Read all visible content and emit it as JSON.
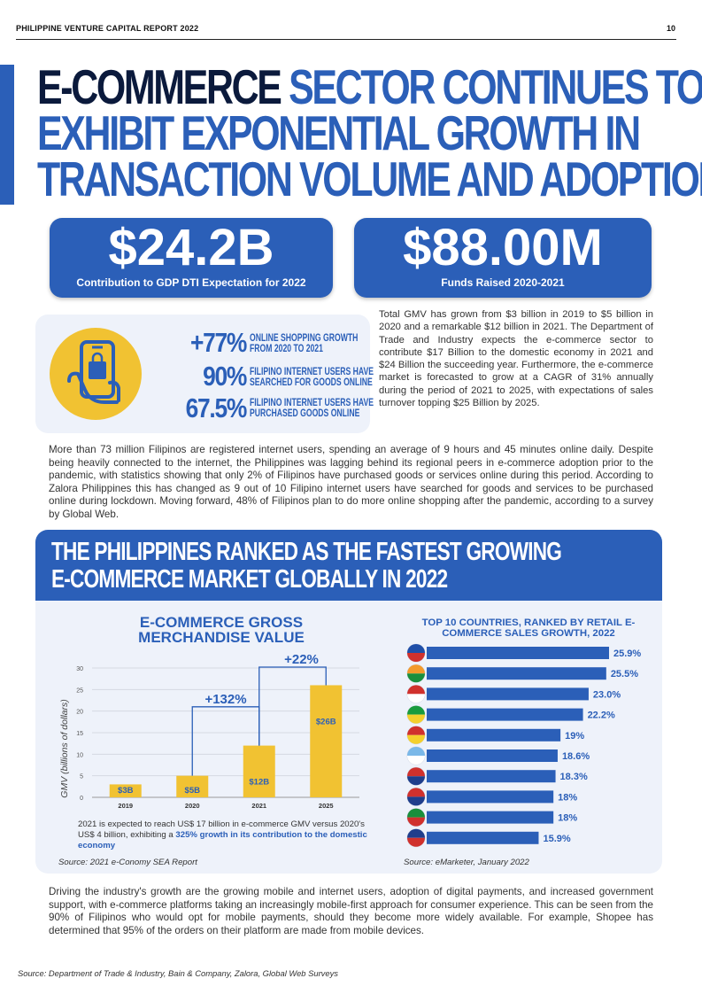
{
  "header": {
    "report_title": "PHILIPPINE VENTURE CAPITAL REPORT 2022",
    "page_number": "10"
  },
  "hero": {
    "line1_dark": "E-COMMERCE",
    "line1_blue": "SECTOR CONTINUES TO",
    "line2": "EXHIBIT EXPONENTIAL GROWTH IN",
    "line3": "TRANSACTION VOLUME AND ADOPTION"
  },
  "stat_boxes": [
    {
      "value": "$24.2B",
      "caption": "Contribution to GDP DTI Expectation for 2022"
    },
    {
      "value": "$88.00M",
      "caption": "Funds Raised 2020-2021"
    }
  ],
  "key_stats": [
    {
      "value": "+77%",
      "label_line1": "ONLINE SHOPPING GROWTH",
      "label_line2": "FROM 2020 TO 2021"
    },
    {
      "value": "90%",
      "label_line1": "FILIPINO INTERNET USERS HAVE",
      "label_line2": "SEARCHED FOR GOODS ONLINE"
    },
    {
      "value": "67.5%",
      "label_line1": "FILIPINO INTERNET USERS HAVE",
      "label_line2": "PURCHASED GOODS ONLINE"
    }
  ],
  "paragraph_gmv": "Total GMV has grown from $3 billion in 2019 to $5 billion in 2020 and a remarkable $12 billion in 2021. The Department of Trade and Industry expects the e-commerce sector to contribute $17 Billion to the domestic economy in 2021 and $24 Billion the succeeding year. Furthermore, the e-commerce market is forecasted to grow at a CAGR of 31% annually during the period of 2021 to 2025, with expectations of sales turnover topping $25 Billion by 2025.",
  "paragraph_users": "More than 73 million Filipinos are registered internet users, spending an average of 9 hours and 45 minutes online daily. Despite being heavily connected to the internet, the Philippines was lagging behind its regional peers in e-commerce adoption prior to the pandemic, with statistics showing that only 2% of Filipinos have purchased goods or services online during this period. According to Zalora Philippines this has changed as 9 out of 10 Filipino internet users have searched for goods and services to be purchased online during lockdown. Moving forward, 48% of Filipinos plan to do more online shopping after the pandemic, according to a survey by Global Web.",
  "section": {
    "title_line1": "THE PHILIPPINES RANKED AS THE FASTEST GROWING",
    "title_line2": "E-COMMERCE MARKET GLOBALLY IN 2022"
  },
  "chart_note_plain": "2021 is expected to reach US$ 17 billion in e-commerce GMV versus 2020's US$ 4 billion, exhibiting a ",
  "chart_note_bold": "325% growth in its contribution to the domestic economy",
  "source_gmv": "Source: 2021 e-Conomy SEA Report",
  "source_growth": "Source: eMarketer, January 2022",
  "paragraph_drivers": "Driving the industry's growth are the growing mobile and internet users, adoption of digital payments, and increased government support, with e-commerce platforms taking an increasingly mobile-first approach for consumer experience. This can be seen from the 90% of Filipinos who would opt for mobile payments, should they become more widely available. For example, Shopee has determined that 95% of the orders on their platform are made from mobile devices.",
  "footer_source": "Source: Department of Trade & Industry, Bain & Company, Zalora, Global Web Surveys",
  "colors": {
    "brand_blue": "#2b5fb8",
    "navy": "#0b1a3c",
    "gold": "#f1c232",
    "panel": "#eef2fa"
  },
  "chart_data": [
    {
      "type": "bar",
      "title": "E-COMMERCE GROSS MERCHANDISE VALUE",
      "categories": [
        "2019",
        "2020",
        "2021",
        "2025"
      ],
      "values": [
        3,
        5,
        12,
        26
      ],
      "value_labels": [
        "$3B",
        "$5B",
        "$12B",
        "$26B"
      ],
      "ylabel": "GMV (billions of dollars)",
      "ylim": [
        0,
        30
      ],
      "yticks": [
        "0",
        "5",
        "10",
        "15",
        "20",
        "25",
        "30"
      ],
      "annotations": [
        {
          "text": "+132%"
        },
        {
          "text": "+22%"
        }
      ]
    },
    {
      "type": "bar",
      "orientation": "horizontal",
      "title": "TOP 10 COUNTRIES, RANKED BY RETAIL E-COMMERCE SALES GROWTH, 2022",
      "categories": [
        "Philippines",
        "India",
        "Indonesia",
        "Brazil",
        "Vietnam",
        "Argentina",
        "Malaysia",
        "Thailand",
        "Mexico",
        "US"
      ],
      "values": [
        25.9,
        25.5,
        23.0,
        22.2,
        19,
        18.6,
        18.3,
        18,
        18,
        15.9
      ],
      "value_labels": [
        "25.9%",
        "25.5%",
        "23.0%",
        "22.2%",
        "19%",
        "18.6%",
        "18.3%",
        "18%",
        "18%",
        "15.9%"
      ],
      "legend_icons": [
        "philippines-flag-icon",
        "india-flag-icon",
        "indonesia-flag-icon",
        "brazil-flag-icon",
        "vietnam-flag-icon",
        "argentina-flag-icon",
        "malaysia-flag-icon",
        "thailand-flag-icon",
        "mexico-flag-icon",
        "us-flag-icon"
      ]
    }
  ]
}
